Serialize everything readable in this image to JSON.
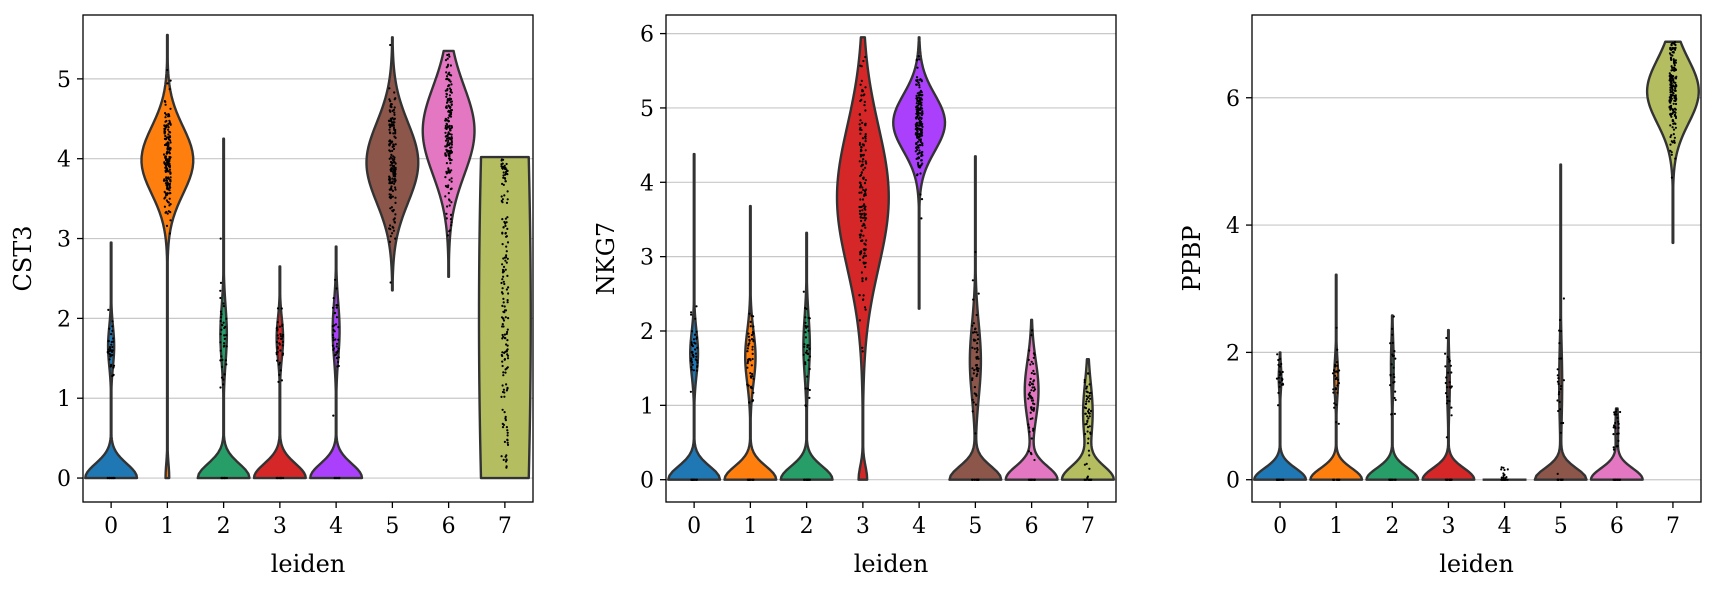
{
  "chart_data": [
    {
      "type": "violin",
      "title": "",
      "xlabel": "leiden",
      "ylabel": "CST3",
      "categories": [
        "0",
        "1",
        "2",
        "3",
        "4",
        "5",
        "6",
        "7"
      ],
      "colors": [
        "#1f77b4",
        "#ff7f0e",
        "#279e68",
        "#d62728",
        "#aa40fc",
        "#8c564b",
        "#e377c2",
        "#b5bd61"
      ],
      "ylim": [
        -0.3,
        5.8
      ],
      "yticks": [
        0,
        1,
        2,
        3,
        4,
        5
      ],
      "grid": true,
      "violins": [
        {
          "category": "0",
          "max": 2.95,
          "zero_frac": 0.85,
          "nonzero_center": 1.65,
          "nonzero_spread": 0.25,
          "nonzero_width": 0.1
        },
        {
          "category": "1",
          "max": 5.55,
          "zero_frac": 0.05,
          "nonzero_center": 3.98,
          "nonzero_spread": 0.42,
          "nonzero_width": 0.7
        },
        {
          "category": "2",
          "max": 4.25,
          "zero_frac": 0.8,
          "nonzero_center": 1.8,
          "nonzero_spread": 0.35,
          "nonzero_width": 0.1
        },
        {
          "category": "3",
          "max": 2.65,
          "zero_frac": 0.8,
          "nonzero_center": 1.75,
          "nonzero_spread": 0.25,
          "nonzero_width": 0.1
        },
        {
          "category": "4",
          "max": 2.9,
          "zero_frac": 0.75,
          "nonzero_center": 1.85,
          "nonzero_spread": 0.35,
          "nonzero_width": 0.1
        },
        {
          "category": "5",
          "max": 5.52,
          "zero_frac": 0.0,
          "min": 2.35,
          "nonzero_center": 3.95,
          "nonzero_spread": 0.5,
          "nonzero_width": 0.6
        },
        {
          "category": "6",
          "max": 5.35,
          "zero_frac": 0.0,
          "min": 2.52,
          "nonzero_center": 4.35,
          "nonzero_spread": 0.55,
          "nonzero_width": 0.7
        },
        {
          "category": "7",
          "max": 4.02,
          "zero_frac": 0.0,
          "min": 0.0,
          "nonzero_center": 2.0,
          "nonzero_spread": 5.0,
          "nonzero_width": 0.62
        }
      ]
    },
    {
      "type": "violin",
      "title": "",
      "xlabel": "leiden",
      "ylabel": "NKG7",
      "categories": [
        "0",
        "1",
        "2",
        "3",
        "4",
        "5",
        "6",
        "7"
      ],
      "colors": [
        "#1f77b4",
        "#ff7f0e",
        "#279e68",
        "#d62728",
        "#aa40fc",
        "#8c564b",
        "#e377c2",
        "#b5bd61"
      ],
      "ylim": [
        -0.3,
        6.25
      ],
      "yticks": [
        0,
        1,
        2,
        3,
        4,
        5,
        6
      ],
      "grid": true,
      "violins": [
        {
          "category": "0",
          "max": 4.38,
          "zero_frac": 0.8,
          "nonzero_center": 1.7,
          "nonzero_spread": 0.3,
          "nonzero_width": 0.12
        },
        {
          "category": "1",
          "max": 3.68,
          "zero_frac": 0.75,
          "nonzero_center": 1.65,
          "nonzero_spread": 0.35,
          "nonzero_width": 0.15
        },
        {
          "category": "2",
          "max": 3.32,
          "zero_frac": 0.8,
          "nonzero_center": 1.8,
          "nonzero_spread": 0.4,
          "nonzero_width": 0.1
        },
        {
          "category": "3",
          "max": 5.95,
          "zero_frac": 0.1,
          "nonzero_center": 3.8,
          "nonzero_spread": 0.95,
          "nonzero_width": 0.6
        },
        {
          "category": "4",
          "max": 5.95,
          "zero_frac": 0.0,
          "min": 2.3,
          "nonzero_center": 4.8,
          "nonzero_spread": 0.38,
          "nonzero_width": 0.72
        },
        {
          "category": "5",
          "max": 4.35,
          "zero_frac": 0.7,
          "nonzero_center": 1.6,
          "nonzero_spread": 0.5,
          "nonzero_width": 0.15
        },
        {
          "category": "6",
          "max": 2.15,
          "zero_frac": 0.75,
          "nonzero_center": 1.2,
          "nonzero_spread": 0.4,
          "nonzero_width": 0.2
        },
        {
          "category": "7",
          "max": 1.62,
          "zero_frac": 0.8,
          "nonzero_center": 0.9,
          "nonzero_spread": 0.4,
          "nonzero_width": 0.15
        }
      ]
    },
    {
      "type": "violin",
      "title": "",
      "xlabel": "leiden",
      "ylabel": "PPBP",
      "categories": [
        "0",
        "1",
        "2",
        "3",
        "4",
        "5",
        "6",
        "7"
      ],
      "colors": [
        "#1f77b4",
        "#ff7f0e",
        "#279e68",
        "#d62728",
        "#aa40fc",
        "#8c564b",
        "#e377c2",
        "#b5bd61"
      ],
      "ylim": [
        -0.35,
        7.3
      ],
      "yticks": [
        0,
        2,
        4,
        6
      ],
      "grid": true,
      "violins": [
        {
          "category": "0",
          "max": 2.0,
          "zero_frac": 0.97,
          "nonzero_center": 1.6,
          "nonzero_spread": 0.2,
          "nonzero_width": 0.05
        },
        {
          "category": "1",
          "max": 3.22,
          "zero_frac": 0.92,
          "nonzero_center": 1.6,
          "nonzero_spread": 0.3,
          "nonzero_width": 0.07
        },
        {
          "category": "2",
          "max": 2.58,
          "zero_frac": 0.95,
          "nonzero_center": 1.8,
          "nonzero_spread": 0.4,
          "nonzero_width": 0.05
        },
        {
          "category": "3",
          "max": 2.35,
          "zero_frac": 0.95,
          "nonzero_center": 1.5,
          "nonzero_spread": 0.4,
          "nonzero_width": 0.05
        },
        {
          "category": "4",
          "max": 0.0,
          "zero_frac": 1.0,
          "nonzero_center": 0.0,
          "nonzero_spread": 0.1,
          "nonzero_width": 0.0
        },
        {
          "category": "5",
          "max": 4.95,
          "zero_frac": 0.85,
          "nonzero_center": 1.5,
          "nonzero_spread": 0.6,
          "nonzero_width": 0.05
        },
        {
          "category": "6",
          "max": 1.12,
          "zero_frac": 0.95,
          "nonzero_center": 0.8,
          "nonzero_spread": 0.3,
          "nonzero_width": 0.05
        },
        {
          "category": "7",
          "max": 6.88,
          "zero_frac": 0.0,
          "min": 3.72,
          "nonzero_center": 6.1,
          "nonzero_spread": 0.5,
          "nonzero_width": 0.65
        }
      ]
    }
  ]
}
